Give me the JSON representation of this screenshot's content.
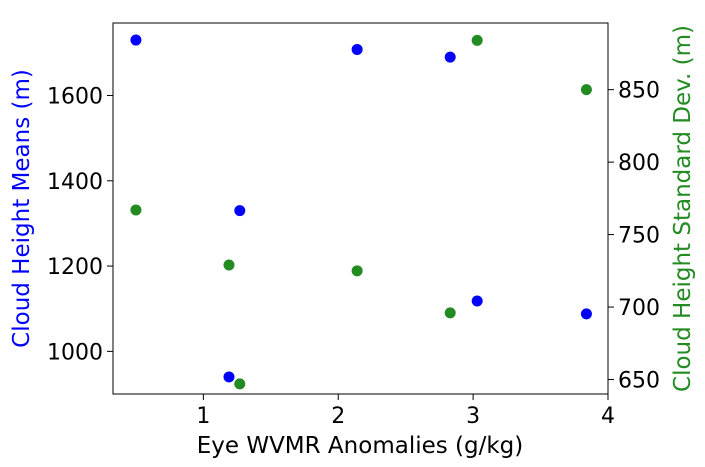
{
  "chart_data": {
    "type": "scatter",
    "xlabel": "Eye WVMR Anomalies (g/kg)",
    "ylabel": "Cloud Height Means (m)",
    "y2label": "Cloud Height Standard Dev. (m)",
    "xlim": [
      0.33,
      4.0
    ],
    "ylim": [
      900,
      1770
    ],
    "y2lim": [
      640,
      896
    ],
    "xticks": [
      1,
      2,
      3,
      4
    ],
    "yticks": [
      1000,
      1200,
      1400,
      1600
    ],
    "y2ticks": [
      650,
      700,
      750,
      800,
      850
    ],
    "grid": false,
    "series": [
      {
        "axis": "left",
        "color": "#0000ff",
        "x": [
          0.5,
          1.19,
          1.27,
          2.14,
          2.83,
          3.03,
          3.84
        ],
        "y": [
          1730,
          940,
          1330,
          1708,
          1690,
          1118,
          1088
        ]
      },
      {
        "axis": "right",
        "color": "#228b22",
        "x": [
          0.5,
          1.19,
          1.27,
          2.14,
          2.83,
          3.03,
          3.84
        ],
        "y": [
          767,
          729,
          647,
          725,
          696,
          884,
          850
        ]
      }
    ]
  }
}
